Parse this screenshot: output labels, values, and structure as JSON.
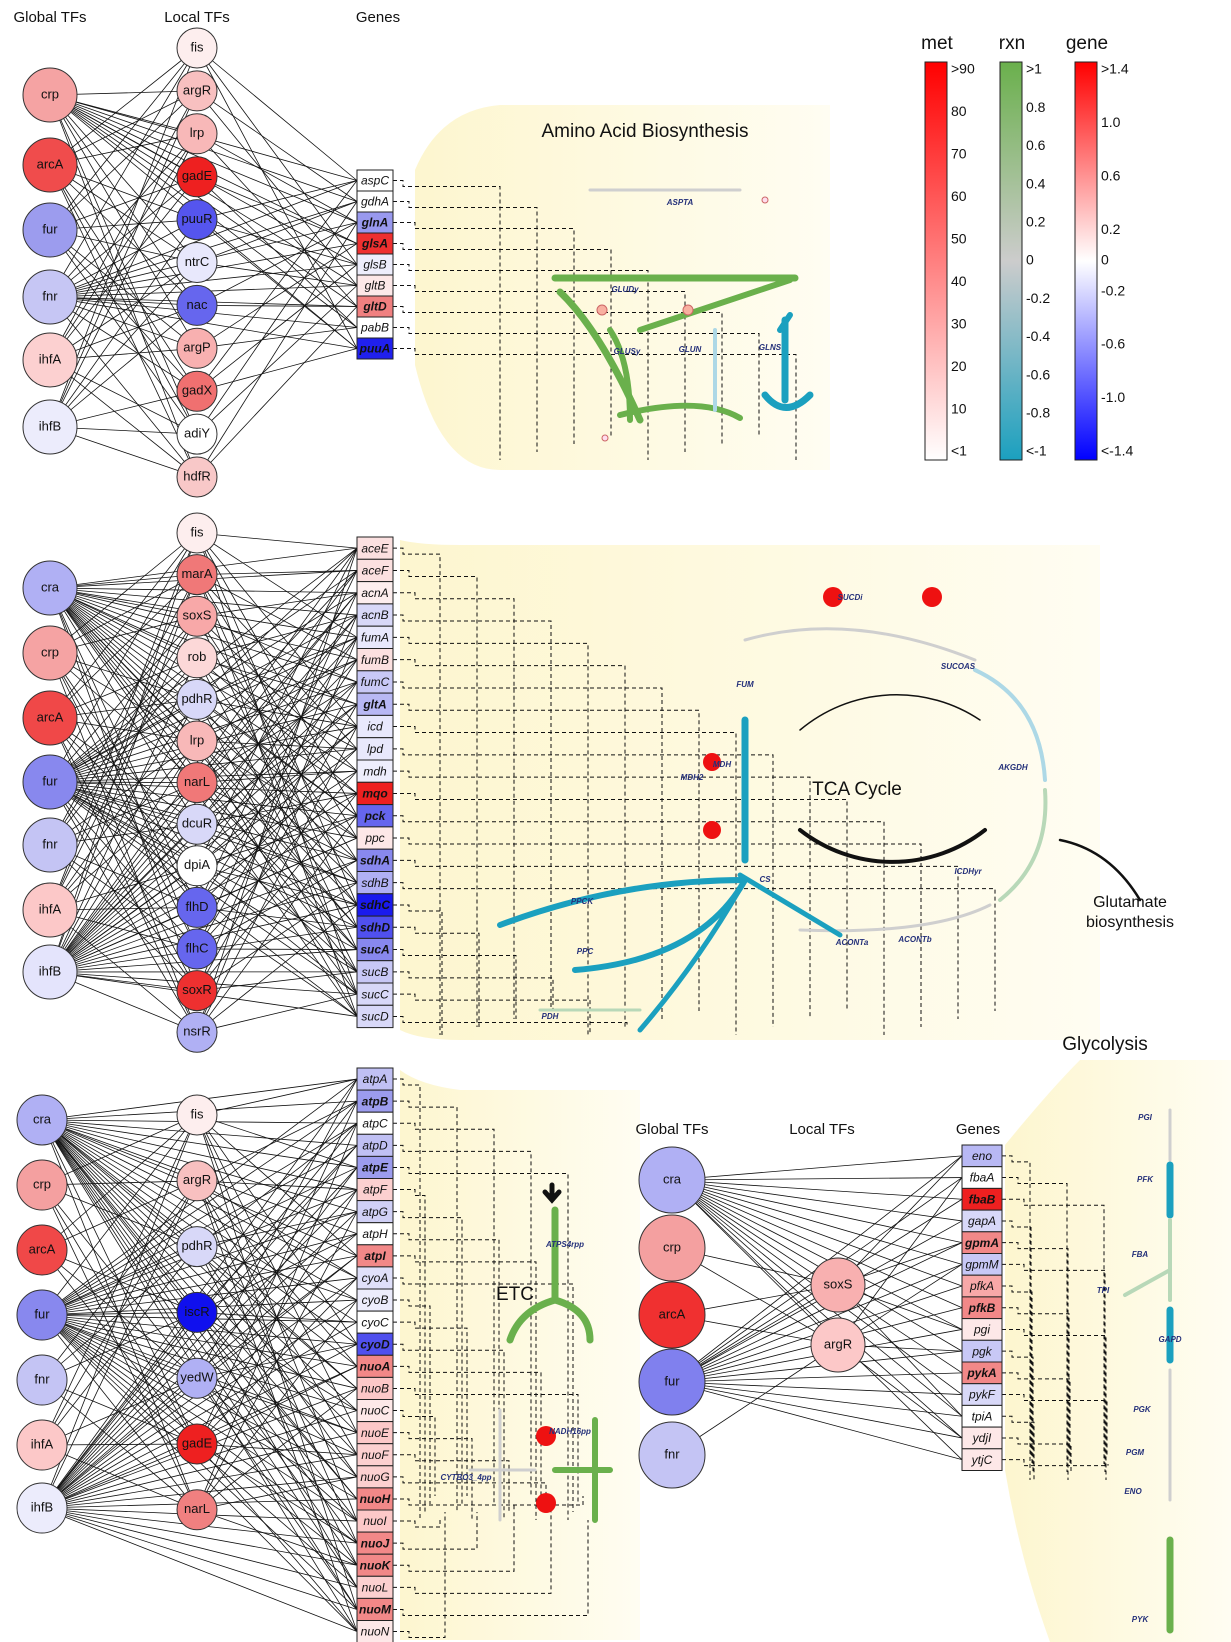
{
  "panels": [
    {
      "headers": [
        "Global TFs",
        "Local TFs",
        "Genes"
      ],
      "title": "Amino Acid Biosynthesis",
      "global_tfs": [
        {
          "label": "crp",
          "color": "#f5a3a3"
        },
        {
          "label": "arcA",
          "color": "#f04c4c"
        },
        {
          "label": "fur",
          "color": "#9c9cee"
        },
        {
          "label": "fnr",
          "color": "#c6c6f4"
        },
        {
          "label": "ihfA",
          "color": "#fcd0d0"
        },
        {
          "label": "ihfB",
          "color": "#ececfc"
        }
      ],
      "local_tfs": [
        {
          "label": "fis",
          "color": "#fdeeee"
        },
        {
          "label": "argR",
          "color": "#f8c0c0"
        },
        {
          "label": "lrp",
          "color": "#f8b8b8"
        },
        {
          "label": "gadE",
          "color": "#ee2020"
        },
        {
          "label": "puuR",
          "color": "#5555ee"
        },
        {
          "label": "ntrC",
          "color": "#e8e8fc"
        },
        {
          "label": "nac",
          "color": "#6666ee"
        },
        {
          "label": "argP",
          "color": "#f8b0b0"
        },
        {
          "label": "gadX",
          "color": "#f07070"
        },
        {
          "label": "adiY",
          "color": "#ffffff"
        },
        {
          "label": "hdfR",
          "color": "#f8c8c8"
        }
      ],
      "genes": [
        {
          "label": "aspC",
          "color": "#ffffff"
        },
        {
          "label": "gdhA",
          "color": "#ffffff"
        },
        {
          "label": "glnA",
          "color": "#9999ee",
          "bold": true
        },
        {
          "label": "glsA",
          "color": "#ee3030",
          "bold": true
        },
        {
          "label": "glsB",
          "color": "#eeeefc"
        },
        {
          "label": "gltB",
          "color": "#fde8e8"
        },
        {
          "label": "gltD",
          "color": "#f08080",
          "bold": true
        },
        {
          "label": "pabB",
          "color": "#ffffff"
        },
        {
          "label": "puuA",
          "color": "#2020ee",
          "bold": true
        }
      ],
      "reactions": [
        "ASPTA",
        "GLUDy",
        "GLUSy",
        "GLUN",
        "GLNS"
      ]
    },
    {
      "global_tfs": [
        {
          "label": "cra",
          "color": "#b0b0f4"
        },
        {
          "label": "crp",
          "color": "#f5a3a3"
        },
        {
          "label": "arcA",
          "color": "#f04848"
        },
        {
          "label": "fur",
          "color": "#8888ee"
        },
        {
          "label": "fnr",
          "color": "#c4c4f4"
        },
        {
          "label": "ihfA",
          "color": "#fcc8c8"
        },
        {
          "label": "ihfB",
          "color": "#e4e4fc"
        }
      ],
      "local_tfs": [
        {
          "label": "fis",
          "color": "#fdeeee"
        },
        {
          "label": "marA",
          "color": "#f07878"
        },
        {
          "label": "soxS",
          "color": "#f8a8a8"
        },
        {
          "label": "rob",
          "color": "#fcd8d8"
        },
        {
          "label": "pdhR",
          "color": "#d8d8f8"
        },
        {
          "label": "lrp",
          "color": "#f8b8b8"
        },
        {
          "label": "narL",
          "color": "#f07878"
        },
        {
          "label": "dcuR",
          "color": "#d8d8f8"
        },
        {
          "label": "dpiA",
          "color": "#ffffff"
        },
        {
          "label": "flhD",
          "color": "#6666ee"
        },
        {
          "label": "flhC",
          "color": "#6666ee"
        },
        {
          "label": "soxR",
          "color": "#ee3030"
        },
        {
          "label": "nsrR",
          "color": "#b0b0f4"
        }
      ],
      "genes": [
        {
          "label": "aceE",
          "color": "#fbe0e0"
        },
        {
          "label": "aceF",
          "color": "#fbe0e0"
        },
        {
          "label": "acnA",
          "color": "#fdeeee"
        },
        {
          "label": "acnB",
          "color": "#d8d8f8"
        },
        {
          "label": "fumA",
          "color": "#e8e8fc"
        },
        {
          "label": "fumB",
          "color": "#fbe0e0"
        },
        {
          "label": "fumC",
          "color": "#c8c8f6"
        },
        {
          "label": "gltA",
          "color": "#b8b8f4",
          "bold": true
        },
        {
          "label": "icd",
          "color": "#e8e8fc"
        },
        {
          "label": "lpd",
          "color": "#e8e8fc"
        },
        {
          "label": "mdh",
          "color": "#eeeefc"
        },
        {
          "label": "mqo",
          "color": "#ee2020",
          "bold": true
        },
        {
          "label": "pck",
          "color": "#6666ee",
          "bold": true
        },
        {
          "label": "ppc",
          "color": "#fde8e8"
        },
        {
          "label": "sdhA",
          "color": "#8888ee",
          "bold": true
        },
        {
          "label": "sdhB",
          "color": "#b0b0f4"
        },
        {
          "label": "sdhC",
          "color": "#1a1aee",
          "bold": true
        },
        {
          "label": "sdhD",
          "color": "#5050ee",
          "bold": true
        },
        {
          "label": "sucA",
          "color": "#8888ee",
          "bold": true
        },
        {
          "label": "sucB",
          "color": "#c8c8f6"
        },
        {
          "label": "sucC",
          "color": "#d8d8f8"
        },
        {
          "label": "sucD",
          "color": "#d8d8f8"
        }
      ],
      "reactions": [
        "SUCDi",
        "SUCOAS",
        "FUM",
        "AKGDH",
        "MDH2",
        "MDH",
        "ICDHyr",
        "CS",
        "ACONTa",
        "ACONTb",
        "PPCK",
        "PPC",
        "PDH"
      ],
      "annotations": [
        "TCA Cycle",
        [
          "Glutamate",
          "biosynthesis"
        ]
      ]
    },
    {
      "title": "ETC",
      "global_tfs": [
        {
          "label": "cra",
          "color": "#b0b0f4"
        },
        {
          "label": "crp",
          "color": "#f4a0a0"
        },
        {
          "label": "arcA",
          "color": "#f04848"
        },
        {
          "label": "fur",
          "color": "#8888ee"
        },
        {
          "label": "fnr",
          "color": "#c4c4f4"
        },
        {
          "label": "ihfA",
          "color": "#fcc8c8"
        },
        {
          "label": "ihfB",
          "color": "#ececfc"
        }
      ],
      "local_tfs": [
        {
          "label": "fis",
          "color": "#fdeeee"
        },
        {
          "label": "argR",
          "color": "#f8c0c0"
        },
        {
          "label": "pdhR",
          "color": "#d8d8f8"
        },
        {
          "label": "iscR",
          "color": "#1010ee"
        },
        {
          "label": "yedW",
          "color": "#b0b0f4"
        },
        {
          "label": "gadE",
          "color": "#ee2020"
        },
        {
          "label": "narL",
          "color": "#f08080"
        }
      ],
      "genes": [
        {
          "label": "atpA",
          "color": "#c0c0f4"
        },
        {
          "label": "atpB",
          "color": "#9c9cee",
          "bold": true
        },
        {
          "label": "atpC",
          "color": "#ffffff"
        },
        {
          "label": "atpD",
          "color": "#c0c0f4"
        },
        {
          "label": "atpE",
          "color": "#9c9cee",
          "bold": true
        },
        {
          "label": "atpF",
          "color": "#fcd0d0"
        },
        {
          "label": "atpG",
          "color": "#d0d0f6"
        },
        {
          "label": "atpH",
          "color": "#ffffff"
        },
        {
          "label": "atpI",
          "color": "#f28888",
          "bold": true
        },
        {
          "label": "cyoA",
          "color": "#e0e0fa"
        },
        {
          "label": "cyoB",
          "color": "#ececfc"
        },
        {
          "label": "cyoC",
          "color": "#ffffff"
        },
        {
          "label": "cyoD",
          "color": "#5050ee",
          "bold": true
        },
        {
          "label": "nuoA",
          "color": "#f28888",
          "bold": true
        },
        {
          "label": "nuoB",
          "color": "#fcc8c8"
        },
        {
          "label": "nuoC",
          "color": "#fde8e8"
        },
        {
          "label": "nuoE",
          "color": "#fcc8c8"
        },
        {
          "label": "nuoF",
          "color": "#fcd0d0"
        },
        {
          "label": "nuoG",
          "color": "#fcd0d0"
        },
        {
          "label": "nuoH",
          "color": "#f28888",
          "bold": true
        },
        {
          "label": "nuoI",
          "color": "#fcc8c8"
        },
        {
          "label": "nuoJ",
          "color": "#f28888",
          "bold": true
        },
        {
          "label": "nuoK",
          "color": "#f28888",
          "bold": true
        },
        {
          "label": "nuoL",
          "color": "#fcd0d0"
        },
        {
          "label": "nuoM",
          "color": "#f28888",
          "bold": true
        },
        {
          "label": "nuoN",
          "color": "#fde8e8"
        }
      ],
      "reactions": [
        "ATPS4rpp",
        "CYTBO3_4pp",
        "NADH16pp"
      ]
    },
    {
      "headers": [
        "Global TFs",
        "Local TFs",
        "Genes"
      ],
      "title": "Glycolysis",
      "global_tfs": [
        {
          "label": "cra",
          "color": "#b0b0f4"
        },
        {
          "label": "crp",
          "color": "#f4a0a0"
        },
        {
          "label": "arcA",
          "color": "#f03030"
        },
        {
          "label": "fur",
          "color": "#8080ee"
        },
        {
          "label": "fnr",
          "color": "#c4c4f4"
        }
      ],
      "local_tfs": [
        {
          "label": "soxS",
          "color": "#f8b0b0"
        },
        {
          "label": "argR",
          "color": "#fcc8c8"
        }
      ],
      "genes": [
        {
          "label": "eno",
          "color": "#b8b8f4"
        },
        {
          "label": "fbaA",
          "color": "#ffffff"
        },
        {
          "label": "fbaB",
          "color": "#ee2020",
          "bold": true
        },
        {
          "label": "gapA",
          "color": "#d8d8f8"
        },
        {
          "label": "gpmA",
          "color": "#f28888",
          "bold": true
        },
        {
          "label": "gpmM",
          "color": "#c8c8f6"
        },
        {
          "label": "pfkA",
          "color": "#f8a8a8"
        },
        {
          "label": "pfkB",
          "color": "#f28888",
          "bold": true
        },
        {
          "label": "pgi",
          "color": "#fde8e8"
        },
        {
          "label": "pgk",
          "color": "#c8c8f6"
        },
        {
          "label": "pykA",
          "color": "#f28888",
          "bold": true
        },
        {
          "label": "pykF",
          "color": "#d8d8f8"
        },
        {
          "label": "tpiA",
          "color": "#ffffff"
        },
        {
          "label": "ydjI",
          "color": "#fde8e8"
        },
        {
          "label": "ytjC",
          "color": "#fde8e8"
        }
      ],
      "reactions": [
        "PGI",
        "PFK",
        "FBA",
        "TPI",
        "GAPD",
        "PGK",
        "PGM",
        "ENO",
        "PYK"
      ]
    }
  ],
  "legend": [
    {
      "title": "met",
      "colors": [
        "#ff0000",
        "#ffffff"
      ],
      "ticks": [
        ">90",
        "80",
        "70",
        "60",
        "50",
        "40",
        "30",
        "20",
        "10",
        "<1"
      ]
    },
    {
      "title": "rxn",
      "colors": [
        "#6ab04c",
        "#cccccc",
        "#1ba0bf"
      ],
      "ticks": [
        ">1",
        "0.8",
        "0.6",
        "0.4",
        "0.2",
        "0",
        "-0.2",
        "-0.4",
        "-0.6",
        "-0.8",
        "<-1"
      ]
    },
    {
      "title": "gene",
      "colors": [
        "#ff0000",
        "#ffffff",
        "#0000ff"
      ],
      "ticks": [
        ">1.4",
        "1.0",
        "0.6",
        "0.2",
        "0",
        "-0.2",
        "-0.6",
        "-1.0",
        "<-1.4"
      ]
    }
  ]
}
